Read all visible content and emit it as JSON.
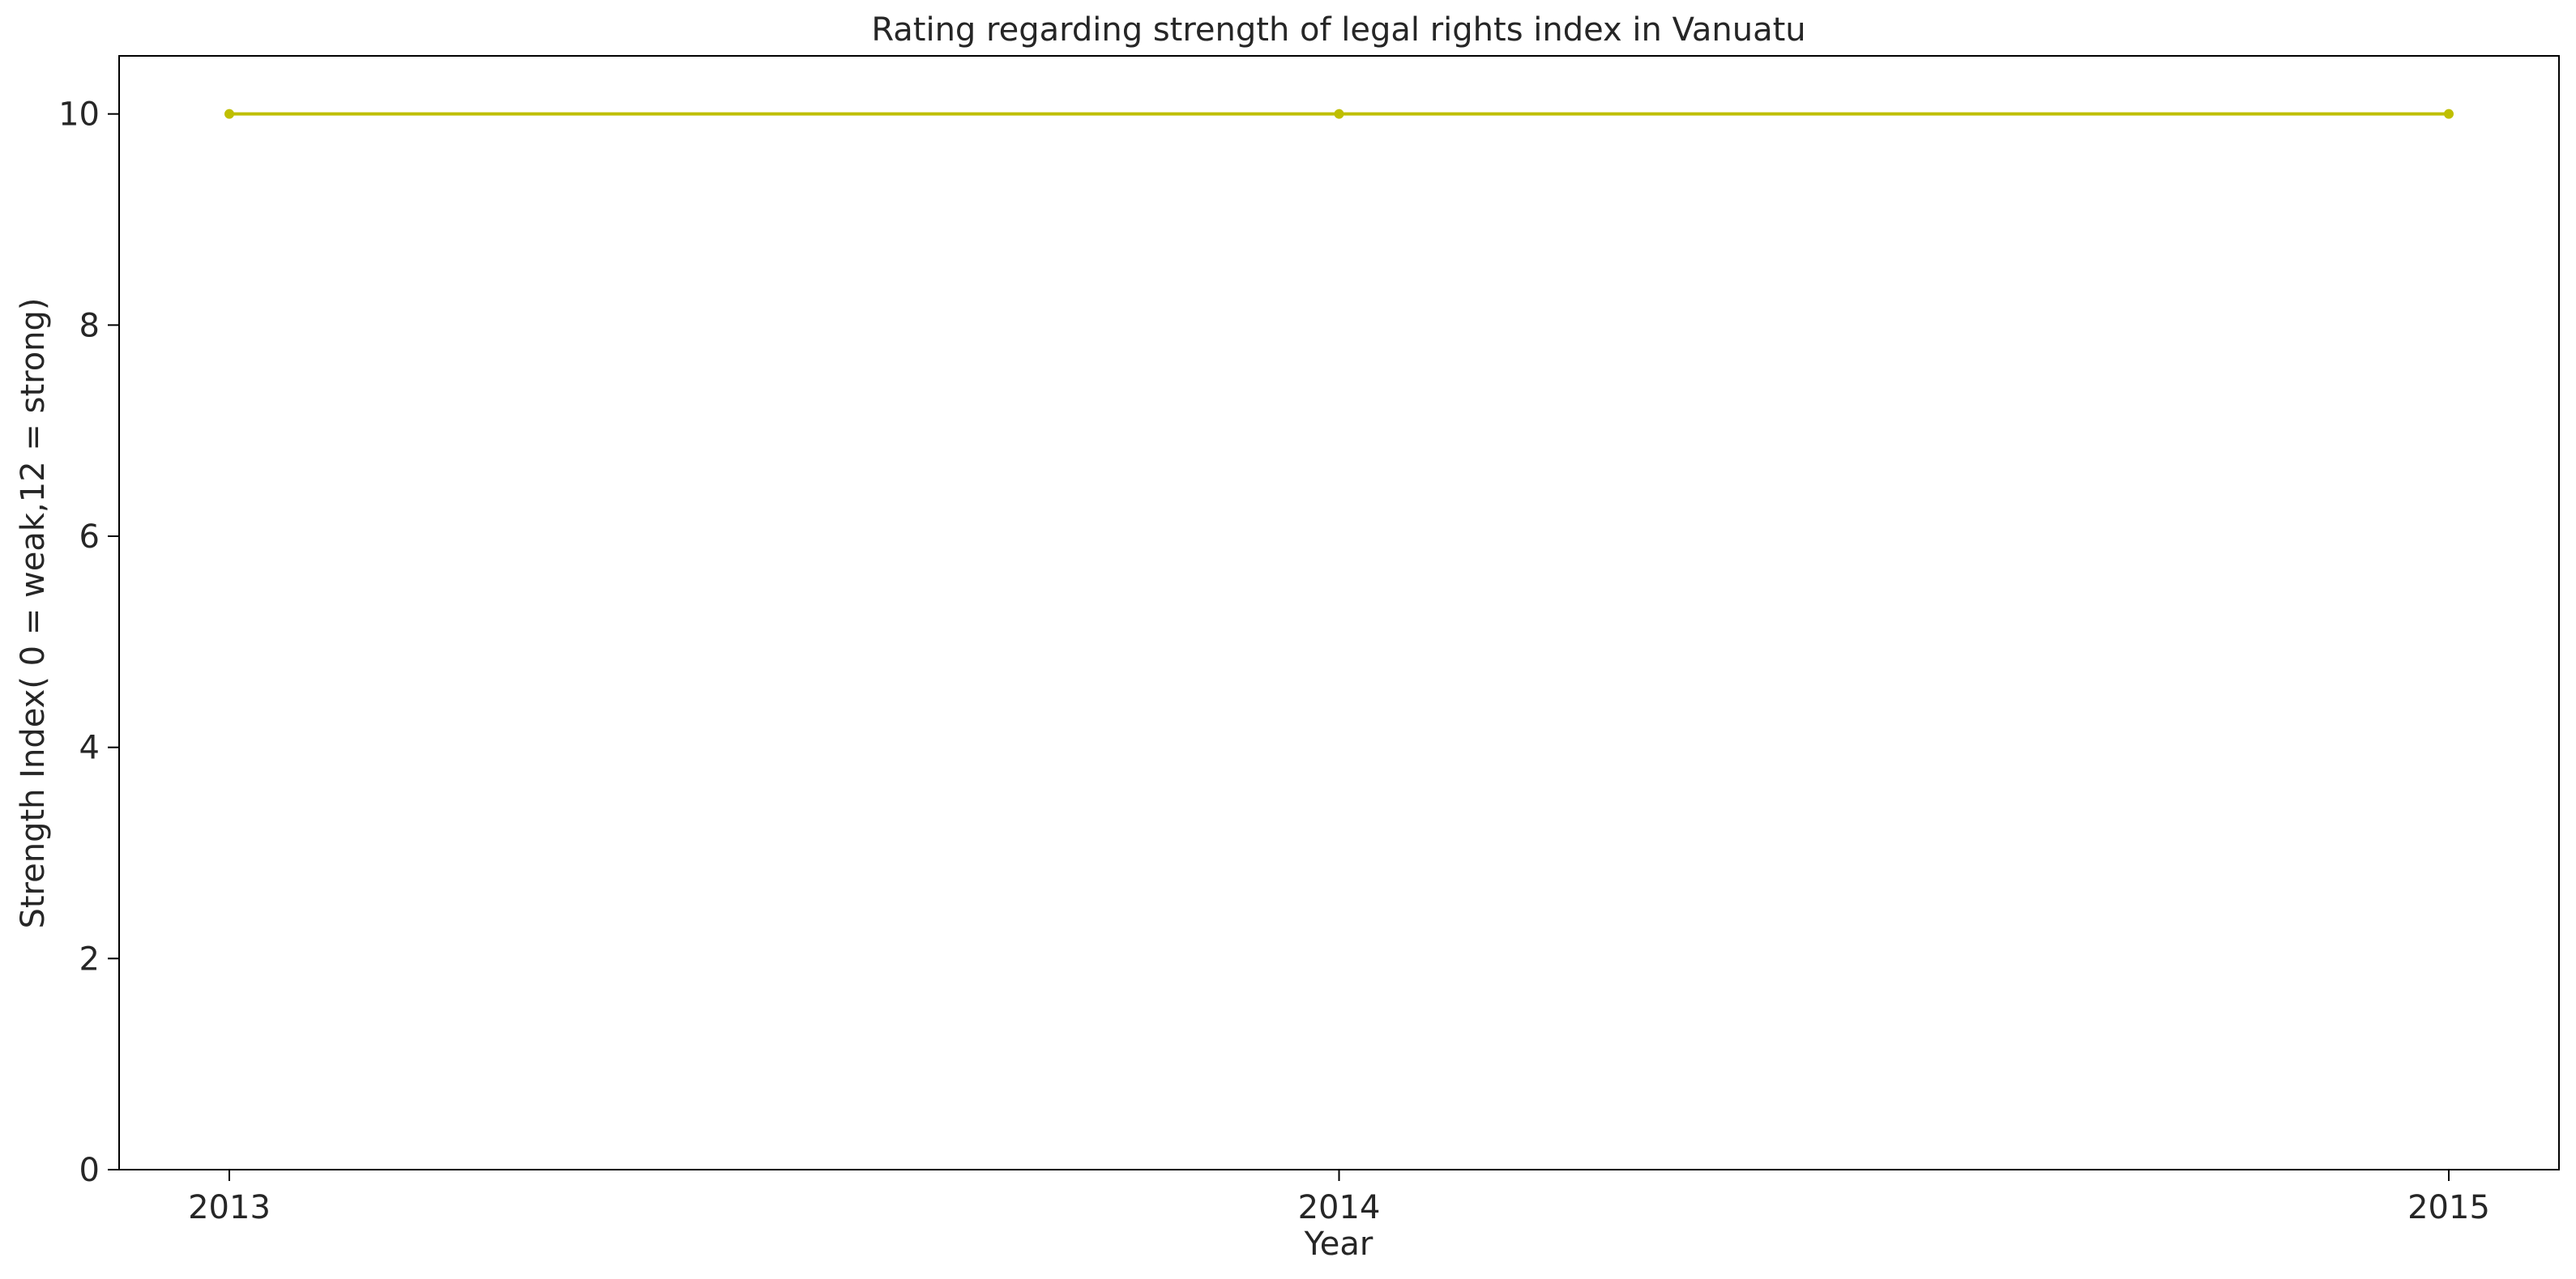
{
  "chart_data": {
    "type": "line",
    "title": "Rating regarding strength of legal rights index in Vanuatu",
    "xlabel": "Year",
    "ylabel": "Strength Index( 0 = weak,12 = strong)",
    "categories": [
      "2013",
      "2014",
      "2015"
    ],
    "series": [
      {
        "values": [
          10,
          10,
          10
        ],
        "color": "#bfbf00",
        "marker": "circle"
      }
    ],
    "yticks": [
      0,
      2,
      4,
      6,
      8,
      10
    ],
    "ylim": [
      0,
      10.55
    ],
    "grid": false,
    "legend": "none"
  }
}
